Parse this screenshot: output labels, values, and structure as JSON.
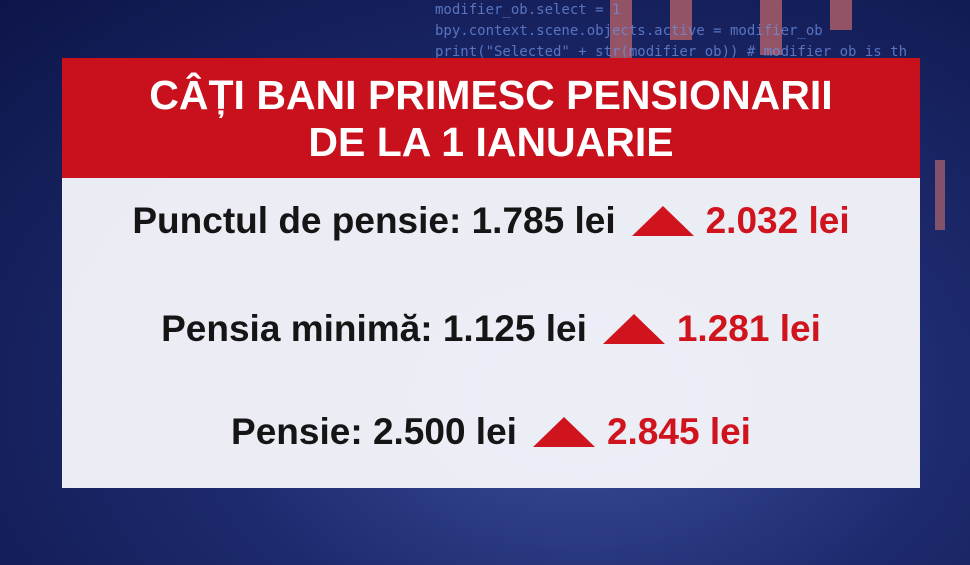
{
  "background": {
    "code_lines": [
      "modifier_ob.select = 1",
      "bpy.context.scene.objects.active = modifier_ob",
      "print(\"Selected\" + str(modifier_ob)) # modifier ob is th"
    ]
  },
  "title": {
    "line1": "CÂȚI BANI PRIMESC PENSIONARII",
    "line2": "DE LA 1 IANUARIE"
  },
  "rows": [
    {
      "label": "Punctul de pensie:",
      "old": "1.785 lei",
      "new": "2.032 lei"
    },
    {
      "label": "Pensia minimă:",
      "old": "1.125 lei",
      "new": "1.281 lei"
    },
    {
      "label": "Pensie:",
      "old": "2.500 lei",
      "new": "2.845 lei"
    }
  ],
  "colors": {
    "accent": "#c9101d",
    "increase": "#d0141e"
  },
  "icons": {
    "increase": "up-triangle-icon"
  }
}
